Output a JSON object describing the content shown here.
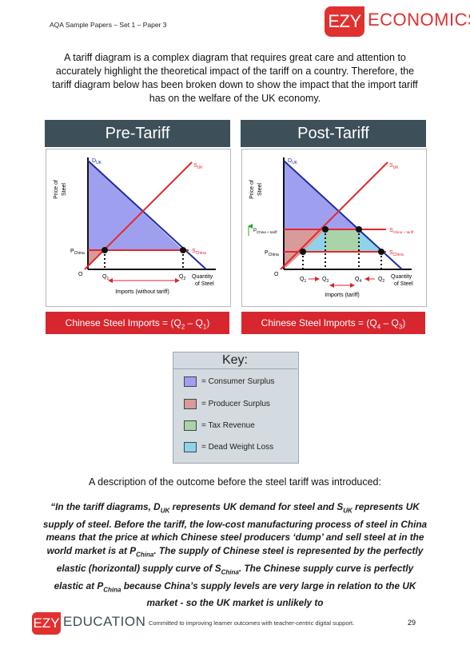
{
  "header": {
    "series": "AQA Sample Papers – Set 1 – Paper 3",
    "logo_box": "EZY",
    "logo_word": "ECONOMICS"
  },
  "intro": "A tariff diagram is a complex diagram that requires great care and attention to accurately highlight the theoretical impact of the tariff on a country. Therefore, the tariff diagram below has been broken down to show the impact that the import tariff has on the welfare of the UK economy.",
  "pre": {
    "title": "Pre-Tariff",
    "y_label_1": "Price of",
    "y_label_2": "Steel",
    "d_label": "D",
    "d_sub": "UK",
    "s_label": "S",
    "s_sub": "UK",
    "schina_label": "S",
    "schina_sub": "China",
    "p_label": "P",
    "p_sub": "China",
    "origin": "O",
    "q1": "Q",
    "q1_sub": "1",
    "q2": "Q",
    "q2_sub": "2",
    "x_label_1": "Quantity",
    "x_label_2": "of Steel",
    "imports_label": "Imports (without tariff)",
    "imports_text": "Chinese Steel Imports = (Q",
    "imports_a": "2",
    "imports_mid": " – Q",
    "imports_b": "1",
    "imports_end": ")"
  },
  "post": {
    "title": "Post-Tariff",
    "y_label_1": "Price of",
    "y_label_2": "Steel",
    "d_label": "D",
    "d_sub": "UK",
    "s_label": "S",
    "s_sub": "UK",
    "schina_tariff_label": "S",
    "schina_tariff_sub": "China + tariff",
    "schina_label": "S",
    "schina_sub": "China",
    "p_tariff_label": "P",
    "p_tariff_sub": "China + tariff",
    "p_label": "P",
    "p_sub": "China",
    "origin": "O",
    "q1": "Q",
    "q1_sub": "1",
    "q3": "Q",
    "q3_sub": "3",
    "q4": "Q",
    "q4_sub": "4",
    "q2": "Q",
    "q2_sub": "2",
    "x_label_1": "Quantity",
    "x_label_2": "of Steel",
    "imports_label": "Imports (tariff)",
    "imports_text": "Chinese Steel Imports = (Q",
    "imports_a": "4",
    "imports_mid": " – Q",
    "imports_b": "3",
    "imports_end": ")"
  },
  "key": {
    "title": "Key:",
    "items": [
      {
        "label": "= Consumer Surplus",
        "color": "#9f9ff0"
      },
      {
        "label": "= Producer Surplus",
        "color": "#d99a9a"
      },
      {
        "label": "= Tax Revenue",
        "color": "#a9d3a9"
      },
      {
        "label": "= Dead Weight Loss",
        "color": "#8fd3ea"
      }
    ]
  },
  "colors": {
    "brand_red": "#e0312f",
    "panel_dark": "#3d4f58",
    "imports_red": "#d8262e",
    "demand_blue": "#1f2e9a",
    "supply_red": "#e3282c"
  },
  "description_heading": "A description of the outcome before the steel tariff was introduced:",
  "quote": {
    "p1": "“In the tariff diagrams, D",
    "s1": "UK",
    "p2": " represents UK demand for steel and S",
    "s2": "UK",
    "p3": " represents UK supply of steel. Before the tariff, the low-cost manufacturing process of steel in China means that the price at which Chinese steel producers ‘dump’ and sell steel at in the world market is at P",
    "s3": "China",
    "p4": ". The supply of Chinese steel is represented by the perfectly elastic (horizontal) supply curve of S",
    "s4": "China",
    "p5": ". The Chinese supply curve is perfectly elastic at P",
    "s5": "China",
    "p6": " because China’s supply levels are very large in relation to the UK market - so the UK market is unlikely to"
  },
  "footer": {
    "logo_box": "EZY",
    "logo_word": "EDUCATION",
    "tagline": "Committed to improving learner outcomes with teacher-centric digital support.",
    "page": "29"
  }
}
